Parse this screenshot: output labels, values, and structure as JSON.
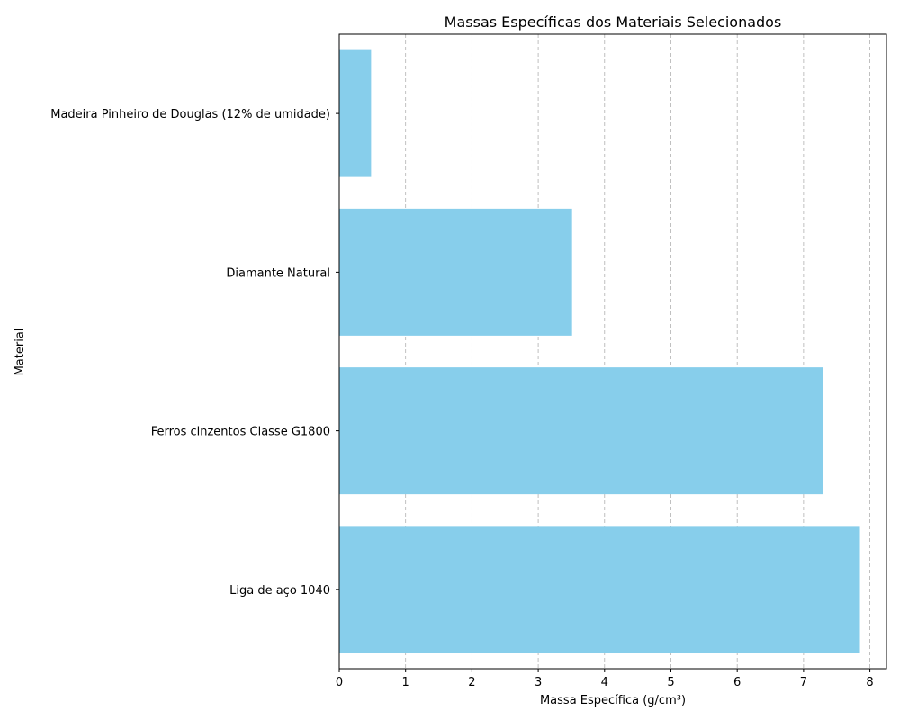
{
  "chart_data": {
    "type": "bar",
    "orientation": "horizontal",
    "title": "Massas Específicas dos Materiais Selecionados",
    "xlabel": "Massa Específica (g/cm³)",
    "ylabel": "Material",
    "categories": [
      "Liga de aço 1040",
      "Ferros cinzentos Classe G1800",
      "Diamante Natural",
      "Madeira Pinheiro de Douglas (12% de umidade)"
    ],
    "values": [
      7.85,
      7.3,
      3.51,
      0.48
    ],
    "xlim": [
      0,
      8.25
    ],
    "xticks": [
      "0",
      "1",
      "2",
      "3",
      "4",
      "5",
      "6",
      "7",
      "8"
    ],
    "grid": "x-axis dashed",
    "bar_color": "#87ceeb",
    "grid_color": "#b0b0b0"
  }
}
